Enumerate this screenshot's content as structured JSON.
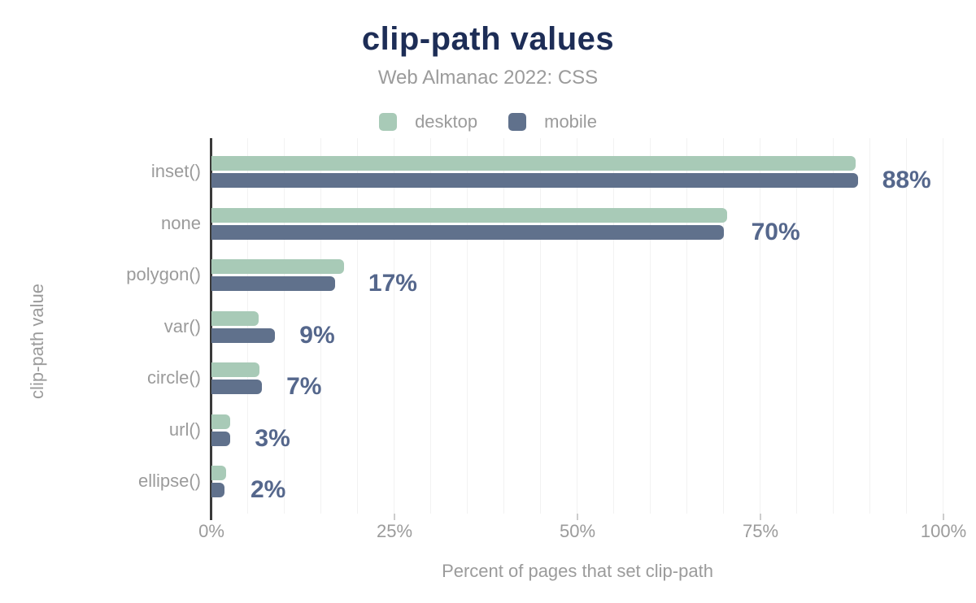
{
  "chart_data": {
    "type": "bar",
    "orientation": "horizontal",
    "title": "clip-path values",
    "subtitle": "Web Almanac 2022: CSS",
    "categories": [
      "inset()",
      "none",
      "polygon()",
      "var()",
      "circle()",
      "url()",
      "ellipse()"
    ],
    "series": [
      {
        "name": "desktop",
        "color": "#a8cab7",
        "values": [
          88.0,
          70.4,
          18.1,
          6.4,
          6.6,
          2.6,
          2.0
        ]
      },
      {
        "name": "mobile",
        "color": "#60718c",
        "values": [
          88.3,
          70.0,
          16.9,
          8.7,
          6.9,
          2.5,
          1.8
        ]
      }
    ],
    "value_labels": [
      "88%",
      "70%",
      "17%",
      "9%",
      "7%",
      "3%",
      "2%"
    ],
    "xlabel": "Percent of pages that set clip-path",
    "ylabel": "clip-path value",
    "x_ticks": [
      "0%",
      "25%",
      "50%",
      "75%",
      "100%"
    ],
    "x_tick_values": [
      0,
      25,
      50,
      75,
      100
    ],
    "xlim": [
      0,
      100
    ],
    "grid": "vertical, minor gridline every 5%",
    "legend_position": "top-center",
    "colors": {
      "title": "#1d2d56",
      "muted_text": "#9b9b9b",
      "desktop_bar": "#a8cab7",
      "mobile_bar": "#60718c",
      "value_label": "#55678c",
      "axis_line": "#3a3a3a",
      "gridline": "#f2f2f2",
      "tick_mark": "#cccccc",
      "background": "#ffffff"
    }
  }
}
